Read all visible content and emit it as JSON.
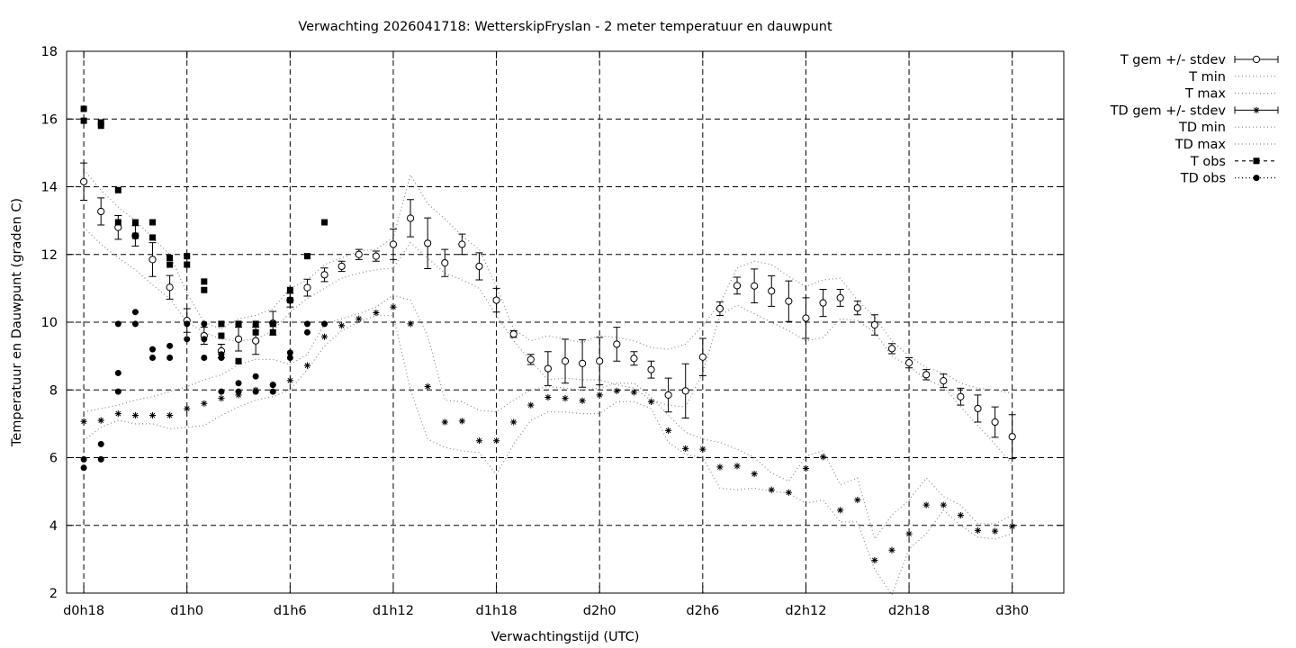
{
  "chart_data": {
    "type": "scatter",
    "title": "Verwachting 2026041718: WetterskipFryslan - 2 meter temperatuur en dauwpunt",
    "xlabel": "Verwachtingstijd (UTC)",
    "ylabel": "Temperatuur en Dauwpunt (graden C)",
    "xlim": [
      17,
      75
    ],
    "ylim": [
      2,
      18
    ],
    "grid": true,
    "legend_position": "outside-right-top",
    "x_ticks": [
      {
        "value": 18,
        "label": "d0h18"
      },
      {
        "value": 24,
        "label": "d1h0"
      },
      {
        "value": 30,
        "label": "d1h6"
      },
      {
        "value": 36,
        "label": "d1h12"
      },
      {
        "value": 42,
        "label": "d1h18"
      },
      {
        "value": 48,
        "label": "d2h0"
      },
      {
        "value": 54,
        "label": "d2h6"
      },
      {
        "value": 60,
        "label": "d2h12"
      },
      {
        "value": 66,
        "label": "d2h18"
      },
      {
        "value": 72,
        "label": "d3h0"
      }
    ],
    "y_ticks": [
      2,
      4,
      6,
      8,
      10,
      12,
      14,
      16,
      18
    ],
    "x": [
      18,
      19,
      20,
      21,
      22,
      23,
      24,
      25,
      26,
      27,
      28,
      29,
      30,
      31,
      32,
      33,
      34,
      35,
      36,
      37,
      38,
      39,
      40,
      41,
      42,
      43,
      44,
      45,
      46,
      47,
      48,
      49,
      50,
      51,
      52,
      53,
      54,
      55,
      56,
      57,
      58,
      59,
      60,
      61,
      62,
      63,
      64,
      65,
      66,
      67,
      68,
      69,
      70,
      71,
      72
    ],
    "series": [
      {
        "name": "T gem +/- stdev",
        "marker": "open-circle",
        "values": [
          14.15,
          13.27,
          12.8,
          12.55,
          11.85,
          11.03,
          10.05,
          9.6,
          9.15,
          9.5,
          9.45,
          9.97,
          10.65,
          11.02,
          11.4,
          11.65,
          12.0,
          11.95,
          12.3,
          13.07,
          12.33,
          11.75,
          12.3,
          11.65,
          10.65,
          9.65,
          8.9,
          8.63,
          8.85,
          8.78,
          8.85,
          9.35,
          8.93,
          8.6,
          7.85,
          7.97,
          8.97,
          10.4,
          11.08,
          11.07,
          10.92,
          10.62,
          10.12,
          10.57,
          10.72,
          10.42,
          9.92,
          9.22,
          8.8,
          8.45,
          8.27,
          7.8,
          7.45,
          7.05,
          6.62
        ],
        "stdev": [
          0.55,
          0.4,
          0.35,
          0.3,
          0.5,
          0.35,
          0.35,
          0.25,
          0.2,
          0.35,
          0.4,
          0.35,
          0.2,
          0.25,
          0.2,
          0.15,
          0.15,
          0.15,
          0.45,
          0.55,
          0.75,
          0.4,
          0.3,
          0.4,
          0.35,
          0.1,
          0.15,
          0.5,
          0.65,
          0.7,
          0.7,
          0.5,
          0.2,
          0.25,
          0.5,
          0.8,
          0.55,
          0.2,
          0.25,
          0.5,
          0.45,
          0.6,
          0.6,
          0.4,
          0.25,
          0.2,
          0.3,
          0.15,
          0.15,
          0.15,
          0.2,
          0.25,
          0.4,
          0.45,
          0.65
        ]
      },
      {
        "name": "T min",
        "style": "dotted",
        "values": [
          12.8,
          12.3,
          11.9,
          11.55,
          11.1,
          10.7,
          10.0,
          9.7,
          9.5,
          9.45,
          9.5,
          9.75,
          10.3,
          10.7,
          11.0,
          11.3,
          11.45,
          11.55,
          11.6,
          12.35,
          11.9,
          11.45,
          11.25,
          11.0,
          10.2,
          9.45,
          8.85,
          8.3,
          8.35,
          8.3,
          8.3,
          8.15,
          8.05,
          7.7,
          7.55,
          7.5,
          8.5,
          10.2,
          10.5,
          10.25,
          10.0,
          9.75,
          9.45,
          9.55,
          10.1,
          10.05,
          9.7,
          9.0,
          8.7,
          8.3,
          8.1,
          7.5,
          6.95,
          6.4,
          5.8
        ]
      },
      {
        "name": "T max",
        "style": "dotted",
        "values": [
          14.5,
          13.9,
          13.4,
          13.0,
          12.5,
          12.0,
          10.85,
          10.0,
          9.8,
          10.1,
          10.2,
          10.4,
          11.0,
          11.25,
          11.7,
          11.9,
          12.1,
          12.15,
          12.5,
          14.35,
          13.5,
          13.05,
          12.55,
          12.15,
          11.05,
          9.8,
          9.45,
          9.6,
          9.5,
          9.4,
          9.6,
          9.55,
          9.45,
          9.25,
          9.2,
          9.35,
          9.9,
          10.55,
          11.6,
          11.8,
          11.7,
          11.35,
          11.05,
          11.25,
          11.3,
          10.65,
          10.15,
          9.45,
          9.0,
          8.65,
          8.5,
          8.2,
          8.05,
          8.0,
          7.9
        ]
      },
      {
        "name": "TD gem +/- stdev",
        "marker": "asterisk",
        "values": [
          7.07,
          7.1,
          7.3,
          7.25,
          7.25,
          7.25,
          7.45,
          7.6,
          7.75,
          7.85,
          8.0,
          8.15,
          8.28,
          8.72,
          9.57,
          9.9,
          10.1,
          10.28,
          10.45,
          9.95,
          8.1,
          7.05,
          7.08,
          6.5,
          6.5,
          7.05,
          7.55,
          7.78,
          7.75,
          7.68,
          7.85,
          7.97,
          7.93,
          7.65,
          6.8,
          6.27,
          6.25,
          5.72,
          5.75,
          5.52,
          5.05,
          4.97,
          5.68,
          6.02,
          4.45,
          4.75,
          2.97,
          3.27,
          3.75,
          4.6,
          4.6,
          4.3,
          3.85,
          3.83,
          3.97
        ]
      },
      {
        "name": "TD min",
        "style": "dotted",
        "values": [
          6.5,
          6.9,
          7.1,
          7.0,
          7.0,
          6.85,
          6.9,
          6.95,
          7.25,
          7.5,
          7.7,
          7.8,
          8.0,
          8.6,
          9.3,
          9.75,
          10.0,
          10.2,
          10.2,
          8.0,
          6.55,
          6.3,
          6.2,
          6.15,
          5.5,
          6.4,
          7.1,
          7.35,
          7.35,
          7.3,
          7.3,
          7.65,
          7.65,
          7.45,
          6.45,
          6.1,
          6.0,
          5.1,
          5.05,
          5.1,
          5.0,
          4.95,
          4.65,
          4.75,
          4.1,
          4.1,
          2.7,
          1.95,
          3.3,
          3.75,
          4.45,
          4.0,
          3.65,
          3.6,
          3.75
        ]
      },
      {
        "name": "TD max",
        "style": "dotted",
        "values": [
          7.35,
          7.45,
          7.55,
          7.7,
          7.8,
          7.95,
          8.1,
          8.3,
          8.45,
          8.75,
          8.9,
          8.9,
          8.75,
          9.05,
          9.95,
          10.1,
          10.25,
          10.45,
          10.8,
          10.65,
          9.6,
          7.7,
          7.65,
          7.4,
          7.35,
          7.7,
          8.0,
          8.1,
          8.05,
          8.0,
          8.05,
          8.2,
          8.2,
          7.8,
          7.25,
          6.75,
          6.55,
          6.45,
          6.25,
          6.0,
          5.55,
          5.3,
          6.05,
          6.2,
          5.2,
          5.4,
          3.6,
          4.3,
          4.75,
          5.4,
          4.85,
          4.6,
          4.05,
          4.05,
          4.3
        ]
      }
    ],
    "observations": [
      {
        "name": "T obs",
        "marker": "filled-square",
        "points": [
          [
            18,
            16.3
          ],
          [
            18,
            15.95
          ],
          [
            19,
            15.9
          ],
          [
            19,
            15.8
          ],
          [
            20,
            13.9
          ],
          [
            20,
            12.95
          ],
          [
            21,
            12.95
          ],
          [
            21,
            12.55
          ],
          [
            22,
            12.95
          ],
          [
            22,
            12.5
          ],
          [
            23,
            11.9
          ],
          [
            23,
            11.7
          ],
          [
            24,
            11.95
          ],
          [
            24,
            11.7
          ],
          [
            25,
            11.2
          ],
          [
            25,
            10.95
          ],
          [
            26,
            9.95
          ],
          [
            26,
            9.6
          ],
          [
            27,
            9.95
          ],
          [
            27,
            8.85
          ],
          [
            28,
            9.95
          ],
          [
            28,
            9.7
          ],
          [
            29,
            9.95
          ],
          [
            29,
            9.7
          ],
          [
            30,
            10.95
          ],
          [
            30,
            10.65
          ],
          [
            31,
            11.95
          ],
          [
            32,
            12.95
          ]
        ]
      },
      {
        "name": "TD obs",
        "marker": "filled-circle",
        "points": [
          [
            18,
            5.95
          ],
          [
            18,
            5.7
          ],
          [
            19,
            6.4
          ],
          [
            19,
            5.95
          ],
          [
            20,
            9.95
          ],
          [
            20,
            8.5
          ],
          [
            20,
            7.95
          ],
          [
            21,
            10.3
          ],
          [
            21,
            9.95
          ],
          [
            22,
            9.2
          ],
          [
            22,
            8.95
          ],
          [
            23,
            9.3
          ],
          [
            23,
            8.95
          ],
          [
            24,
            9.95
          ],
          [
            24,
            9.5
          ],
          [
            25,
            9.95
          ],
          [
            25,
            9.5
          ],
          [
            25,
            8.95
          ],
          [
            26,
            9.05
          ],
          [
            26,
            8.95
          ],
          [
            26,
            7.95
          ],
          [
            27,
            8.2
          ],
          [
            27,
            7.95
          ],
          [
            28,
            8.4
          ],
          [
            28,
            7.95
          ],
          [
            29,
            8.15
          ],
          [
            29,
            7.95
          ],
          [
            30,
            9.1
          ],
          [
            30,
            8.95
          ],
          [
            31,
            9.95
          ],
          [
            31,
            9.7
          ],
          [
            32,
            9.95
          ]
        ]
      }
    ]
  }
}
